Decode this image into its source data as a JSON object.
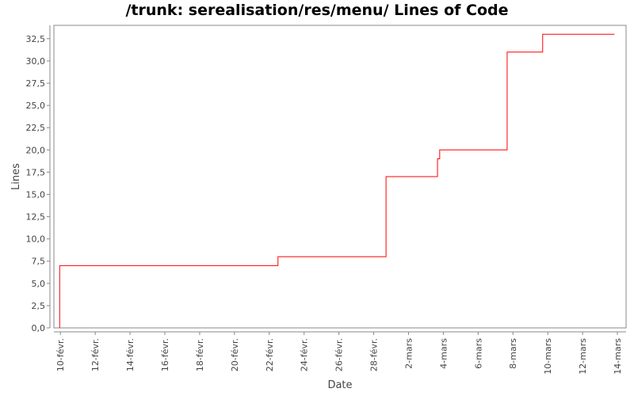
{
  "chart_data": {
    "type": "line",
    "title": "/trunk: serealisation/res/menu/ Lines of Code",
    "xlabel": "Date",
    "ylabel": "Lines",
    "ylim": [
      0,
      34
    ],
    "xlim": [
      "2013-02-09T15:00",
      "2013-03-14T12:00"
    ],
    "y_ticks": [
      "0,0",
      "2,5",
      "5,0",
      "7,5",
      "10,0",
      "12,5",
      "15,0",
      "17,5",
      "20,0",
      "22,5",
      "25,0",
      "27,5",
      "30,0",
      "32,5"
    ],
    "y_tick_values": [
      0,
      2.5,
      5,
      7.5,
      10,
      12.5,
      15,
      17.5,
      20,
      22.5,
      25,
      27.5,
      30,
      32.5
    ],
    "x_ticks": [
      "10-févr.",
      "12-févr.",
      "14-févr.",
      "16-févr.",
      "18-févr.",
      "20-févr.",
      "22-févr.",
      "24-févr.",
      "26-févr.",
      "28-févr.",
      "2-mars",
      "4-mars",
      "6-mars",
      "8-mars",
      "10-mars",
      "12-mars",
      "14-mars"
    ],
    "x_tick_dates": [
      "2013-02-10",
      "2013-02-12",
      "2013-02-14",
      "2013-02-16",
      "2013-02-18",
      "2013-02-20",
      "2013-02-22",
      "2013-02-24",
      "2013-02-26",
      "2013-02-28",
      "2013-03-02",
      "2013-03-04",
      "2013-03-06",
      "2013-03-08",
      "2013-03-10",
      "2013-03-12",
      "2013-03-14"
    ],
    "grid": false,
    "series": [
      {
        "color": "#ff0000",
        "step": true,
        "points": [
          {
            "x": "2013-02-09T23:00",
            "y": 0
          },
          {
            "x": "2013-02-09T23:00",
            "y": 7
          },
          {
            "x": "2013-02-22T12:00",
            "y": 8
          },
          {
            "x": "2013-02-28T17:00",
            "y": 17
          },
          {
            "x": "2013-03-03T16:00",
            "y": 19
          },
          {
            "x": "2013-03-03T19:00",
            "y": 20
          },
          {
            "x": "2013-03-07T16:00",
            "y": 31
          },
          {
            "x": "2013-03-09T17:00",
            "y": 33
          },
          {
            "x": "2013-03-13T20:00",
            "y": 33
          }
        ]
      }
    ]
  }
}
